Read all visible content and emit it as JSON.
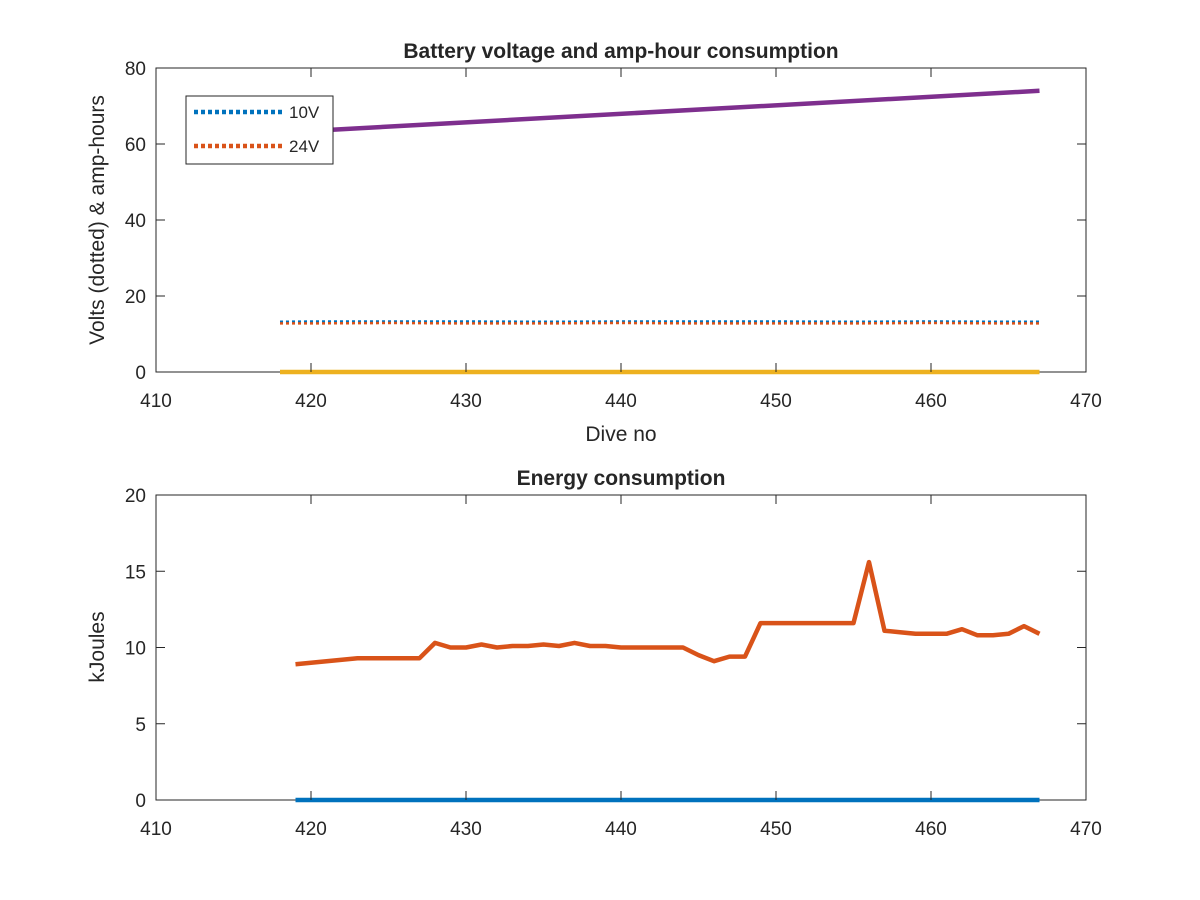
{
  "chart_data": [
    {
      "type": "line",
      "title": "Battery voltage and amp-hour consumption",
      "xlabel": "Dive no",
      "ylabel": "Volts (dotted) & amp-hours",
      "xlim": [
        410,
        470
      ],
      "ylim": [
        0,
        80
      ],
      "xticks": [
        "410",
        "420",
        "430",
        "440",
        "450",
        "460",
        "470"
      ],
      "yticks": [
        "0",
        "20",
        "40",
        "60",
        "80"
      ],
      "grid": false,
      "legend_position": "top-left",
      "series": [
        {
          "name": "10V",
          "style": "dotted",
          "color": "#0072BD",
          "x": [
            418,
            420,
            425,
            430,
            435,
            440,
            445,
            450,
            455,
            460,
            465,
            467
          ],
          "y": [
            13.2,
            13.3,
            13.3,
            13.3,
            13.2,
            13.3,
            13.3,
            13.3,
            13.2,
            13.3,
            13.2,
            13.2
          ]
        },
        {
          "name": "24V",
          "style": "dotted",
          "color": "#D95319",
          "x": [
            418,
            420,
            425,
            430,
            435,
            440,
            445,
            450,
            455,
            460,
            465,
            467
          ],
          "y": [
            12.8,
            12.8,
            12.9,
            12.8,
            12.8,
            12.9,
            12.8,
            12.8,
            12.8,
            12.9,
            12.8,
            12.8
          ]
        },
        {
          "style": "solid",
          "color": "#EDB120",
          "x": [
            418,
            467
          ],
          "y": [
            0,
            0
          ]
        },
        {
          "style": "solid",
          "color": "#7E2F8E",
          "x": [
            418,
            467
          ],
          "y": [
            63,
            74
          ]
        }
      ]
    },
    {
      "type": "line",
      "title": "Energy consumption",
      "xlabel": "",
      "ylabel": "kJoules",
      "xlim": [
        410,
        470
      ],
      "ylim": [
        0,
        20
      ],
      "xticks": [
        "410",
        "420",
        "430",
        "440",
        "450",
        "460",
        "470"
      ],
      "yticks": [
        "0",
        "5",
        "10",
        "15",
        "20"
      ],
      "grid": false,
      "series": [
        {
          "style": "solid",
          "color": "#0072BD",
          "x": [
            419,
            467
          ],
          "y": [
            0,
            0
          ]
        },
        {
          "style": "solid",
          "color": "#D95319",
          "x": [
            419,
            420,
            421,
            422,
            423,
            424,
            425,
            426,
            427,
            428,
            429,
            430,
            431,
            432,
            433,
            434,
            435,
            436,
            437,
            438,
            439,
            440,
            441,
            442,
            443,
            444,
            445,
            446,
            447,
            448,
            449,
            450,
            451,
            452,
            453,
            454,
            455,
            456,
            457,
            458,
            459,
            460,
            461,
            462,
            463,
            464,
            465,
            466,
            467
          ],
          "y": [
            8.9,
            9.0,
            9.1,
            9.2,
            9.3,
            9.3,
            9.3,
            9.3,
            9.3,
            10.3,
            10.0,
            10.0,
            10.2,
            10.0,
            10.1,
            10.1,
            10.2,
            10.1,
            10.3,
            10.1,
            10.1,
            10.0,
            10.0,
            10.0,
            10.0,
            10.0,
            9.5,
            9.1,
            9.4,
            9.4,
            11.6,
            11.6,
            11.6,
            11.6,
            11.6,
            11.6,
            11.6,
            15.6,
            11.1,
            11.0,
            10.9,
            10.9,
            10.9,
            11.2,
            10.8,
            10.8,
            10.9,
            11.4,
            10.9
          ]
        }
      ]
    }
  ]
}
